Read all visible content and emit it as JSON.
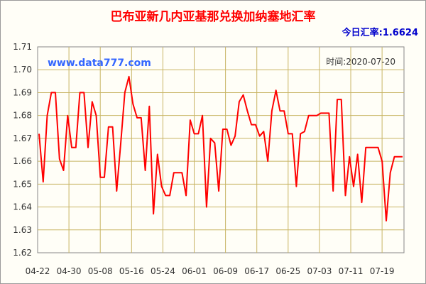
{
  "chart_data": {
    "type": "line",
    "title": "巴布亚新几内亚基那兑换加纳塞地汇率",
    "rate_label": "今日汇率:1.6624",
    "watermark": "www.data777.com",
    "date_label": "时间:2020-07-20",
    "xlabel": "",
    "ylabel": "",
    "ylim": [
      1.62,
      1.71
    ],
    "y_ticks": [
      "1.62",
      "1.63",
      "1.64",
      "1.65",
      "1.66",
      "1.67",
      "1.68",
      "1.69",
      "1.70",
      "1.71"
    ],
    "x_ticks": [
      "04-22",
      "04-30",
      "05-08",
      "05-16",
      "05-24",
      "06-01",
      "06-09",
      "06-17",
      "06-25",
      "07-03",
      "07-11",
      "07-19"
    ],
    "grid": true,
    "colors": {
      "line": "#ff0000",
      "title": "#ff0000",
      "rate_label": "#0000cc",
      "watermark": "#3366ff",
      "grid": "#c8b464",
      "plot_bg": "#fffef7"
    },
    "series": [
      {
        "values": [
          1.672,
          1.651,
          1.68,
          1.69,
          1.69,
          1.661,
          1.656,
          1.68,
          1.666,
          1.666,
          1.69,
          1.69,
          1.666,
          1.686,
          1.68,
          1.653,
          1.653,
          1.675,
          1.675,
          1.647,
          1.668,
          1.69,
          1.697,
          1.685,
          1.679,
          1.679,
          1.656,
          1.684,
          1.637,
          1.663,
          1.649,
          1.645,
          1.645,
          1.655,
          1.655,
          1.655,
          1.645,
          1.678,
          1.672,
          1.672,
          1.68,
          1.64,
          1.67,
          1.668,
          1.647,
          1.674,
          1.674,
          1.667,
          1.671,
          1.686,
          1.689,
          1.682,
          1.676,
          1.676,
          1.671,
          1.673,
          1.66,
          1.682,
          1.691,
          1.682,
          1.682,
          1.672,
          1.672,
          1.649,
          1.672,
          1.673,
          1.68,
          1.68,
          1.68,
          1.681,
          1.681,
          1.681,
          1.647,
          1.687,
          1.687,
          1.645,
          1.662,
          1.649,
          1.663,
          1.642,
          1.666,
          1.666,
          1.666,
          1.666,
          1.66,
          1.634,
          1.655,
          1.662,
          1.662,
          1.662
        ]
      }
    ]
  }
}
